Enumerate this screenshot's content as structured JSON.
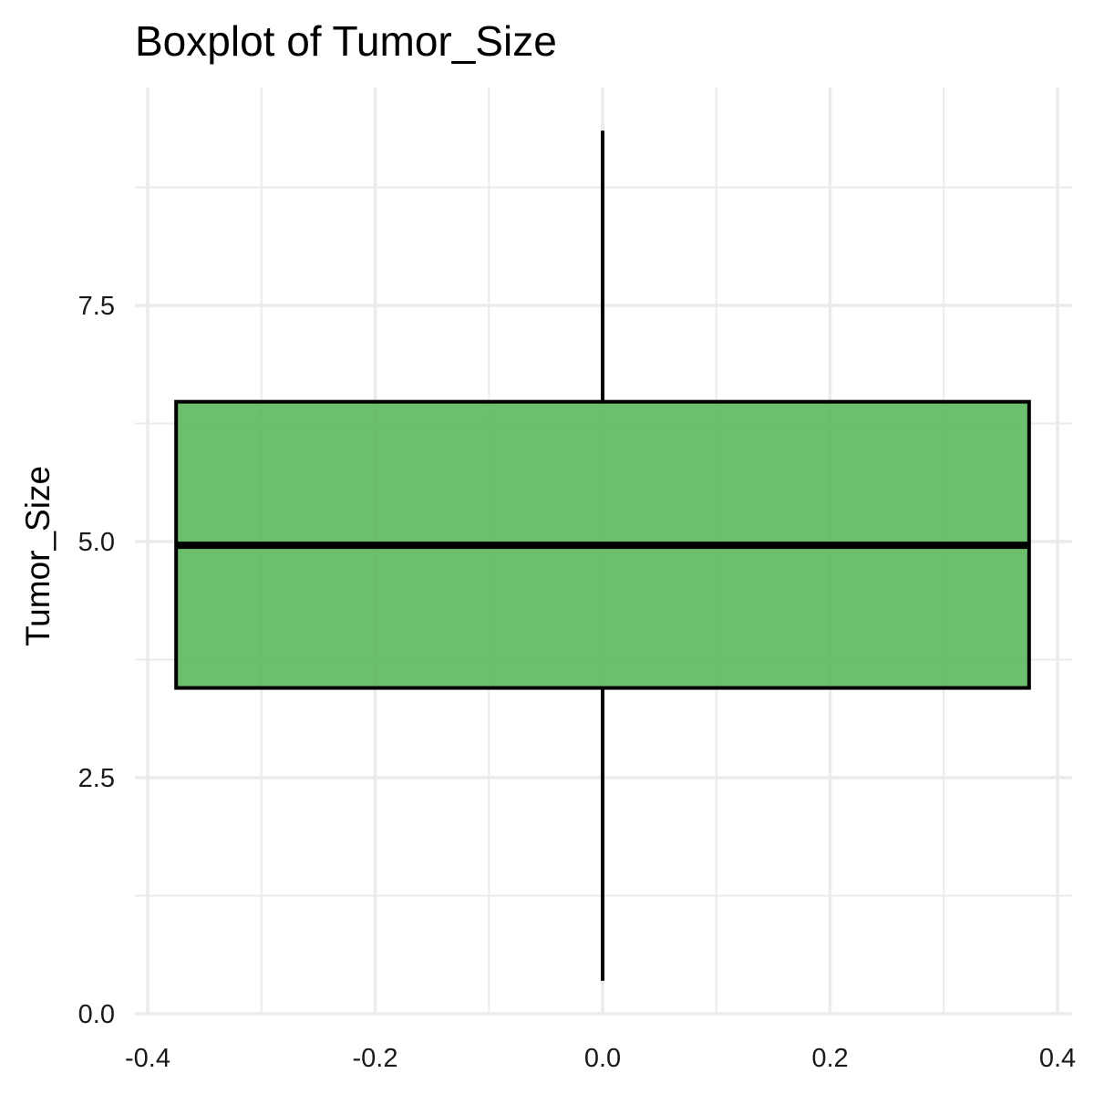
{
  "chart_data": {
    "type": "boxplot",
    "title": "Boxplot of Tumor_Size",
    "xlabel": "",
    "ylabel": "Tumor_Size",
    "xlim": [
      -0.4,
      0.4
    ],
    "ylim": [
      0.0,
      10.0
    ],
    "x_ticks": [
      "-0.4",
      "-0.2",
      "0.0",
      "0.2",
      "0.4"
    ],
    "x_tick_values": [
      -0.4,
      -0.2,
      0.0,
      0.2,
      0.4
    ],
    "y_ticks": [
      "0.0",
      "2.5",
      "5.0",
      "7.5"
    ],
    "y_tick_values": [
      0.0,
      2.5,
      5.0,
      7.5
    ],
    "grid": true,
    "box": {
      "x_center": 0.0,
      "x_half_width": 0.375,
      "whisker_low": 0.35,
      "q1": 3.45,
      "median": 4.96,
      "q3": 6.48,
      "whisker_high": 9.35,
      "fill": "#5cb85c",
      "fill_opacity": 0.9,
      "stroke": "#000000"
    }
  }
}
